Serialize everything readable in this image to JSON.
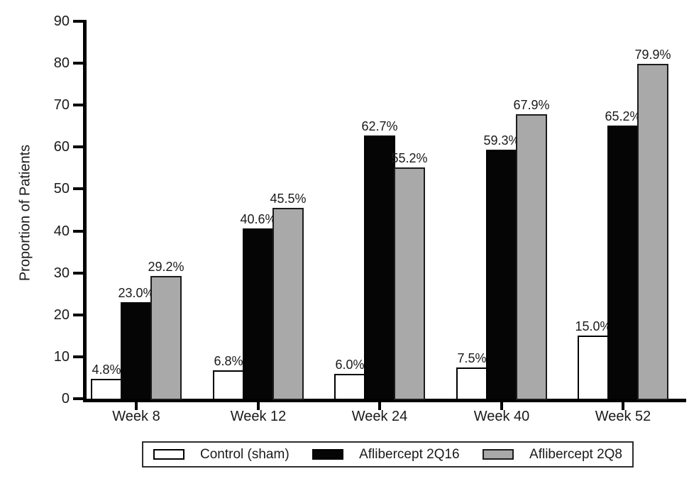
{
  "figure": {
    "background": "#ffffff",
    "text_color": "#1a1a1a",
    "axis_color": "#000000"
  },
  "chart_data": {
    "type": "bar",
    "title": "",
    "xlabel": "",
    "ylabel": "Proportion of Patients",
    "ylim": [
      0,
      90
    ],
    "yticks": [
      0,
      10,
      20,
      30,
      40,
      50,
      60,
      70,
      80,
      90
    ],
    "grid": false,
    "legend_position": "bottom",
    "categories": [
      "Week 8",
      "Week 12",
      "Week 24",
      "Week 40",
      "Week 52"
    ],
    "series": [
      {
        "name": "Control (sham)",
        "color": "#ffffff",
        "border_color": "#000000",
        "values": [
          4.8,
          6.8,
          6.0,
          7.5,
          15.0
        ],
        "labels": [
          "4.8%",
          "6.8%",
          "6.0%",
          "7.5%",
          "15.0%"
        ]
      },
      {
        "name": "Aflibercept 2Q16",
        "color": "#050505",
        "border_color": "#000000",
        "values": [
          23.0,
          40.6,
          62.7,
          59.3,
          65.2
        ],
        "labels": [
          "23.0%",
          "40.6%",
          "62.7%",
          "59.3%",
          "65.2%"
        ]
      },
      {
        "name": "Aflibercept 2Q8",
        "color": "#a9a9a9",
        "border_color": "#1c1c1c",
        "values": [
          29.2,
          45.5,
          55.2,
          67.9,
          79.9
        ],
        "labels": [
          "29.2%",
          "45.5%",
          "55.2%",
          "67.9%",
          "79.9%"
        ]
      }
    ]
  }
}
